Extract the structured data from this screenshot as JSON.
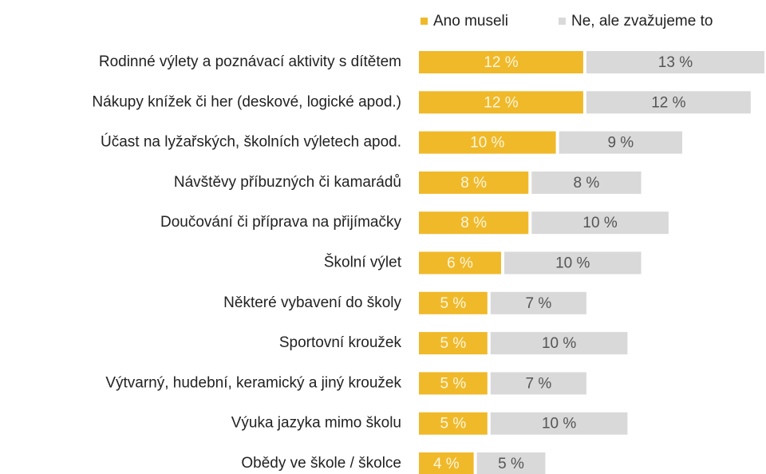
{
  "chart_data": {
    "type": "stacked-bar",
    "orientation": "horizontal",
    "categories": [
      "Rodinné výlety a poznávací aktivity s dítětem",
      "Nákupy knížek či her (deskové, logické apod.)",
      "Účast na lyžařských, školních výletech apod.",
      "Návštěvy příbuzných či kamarádů",
      "Doučování či příprava na přijímačky",
      "Školní výlet",
      "Některé vybavení do školy",
      "Sportovní kroužek",
      "Výtvarný, hudební, keramický a jiný kroužek",
      "Výuka jazyka mimo školu",
      "Obědy ve škole / školce"
    ],
    "series": [
      {
        "name": "Ano museli",
        "color": "#f0b92a",
        "values": [
          12,
          12,
          10,
          8,
          8,
          6,
          5,
          5,
          5,
          5,
          4
        ],
        "value_labels": [
          "12 %",
          "12 %",
          "10 %",
          "8 %",
          "8 %",
          "6 %",
          "5 %",
          "5 %",
          "5 %",
          "5 %",
          "4 %"
        ]
      },
      {
        "name": "Ne, ale zvažujeme to",
        "color": "#d9d9d9",
        "values": [
          13,
          12,
          9,
          8,
          10,
          10,
          7,
          10,
          7,
          10,
          5
        ],
        "value_labels": [
          "13 %",
          "12 %",
          "9 %",
          "8 %",
          "10 %",
          "10 %",
          "7 %",
          "10 %",
          "7 %",
          "10 %",
          "5 %"
        ]
      }
    ],
    "xlim": [
      0,
      25
    ],
    "legend": "top"
  }
}
